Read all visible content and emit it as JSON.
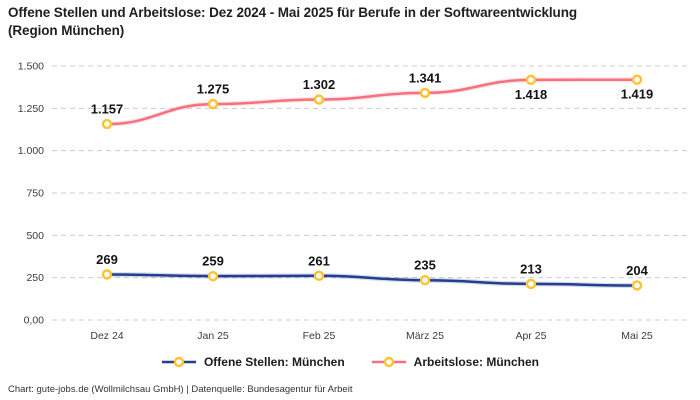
{
  "title": "Offene Stellen und Arbeitslose: Dez 2024 - Mai 2025 für Berufe in der Softwareentwicklung (Region München)",
  "footer": "Chart: gute-jobs.de (Wollmilchsau GmbH) | Datenquelle: Bundesagentur für Arbeit",
  "colors": {
    "background": "#ffffff",
    "open_positions_line": "#243e8f",
    "unemployed_line": "#f8707f",
    "marker_ring": "#fcc22f",
    "marker_fill": "#ffffff",
    "grid": "#cccccc",
    "title_text": "#1f1f1f",
    "axis_text": "#3c3c3c",
    "data_label_text": "#141414",
    "footer_text": "#333333"
  },
  "chart_data": {
    "type": "line",
    "title": "Offene Stellen und Arbeitslose: Dez 2024 - Mai 2025 für Berufe in der Softwareentwicklung (Region München)",
    "categories": [
      "Dez 24",
      "Jan 25",
      "Feb 25",
      "März 25",
      "Apr 25",
      "Mai 25"
    ],
    "series": [
      {
        "id": "offene-stellen-muenchen",
        "name": "Offene Stellen: München",
        "color": "#243e8f",
        "values": [
          269,
          259,
          261,
          235,
          213,
          204
        ],
        "labels": [
          "269",
          "259",
          "261",
          "235",
          "213",
          "204"
        ],
        "label_positions": [
          "above",
          "above",
          "above",
          "above",
          "above",
          "above"
        ]
      },
      {
        "id": "arbeitslose-muenchen",
        "name": "Arbeitslose: München",
        "color": "#f8707f",
        "values": [
          1157,
          1275,
          1302,
          1341,
          1418,
          1419
        ],
        "labels": [
          "1.157",
          "1.275",
          "1.302",
          "1.341",
          "1.418",
          "1.419"
        ],
        "label_positions": [
          "above",
          "above",
          "above",
          "above",
          "below",
          "below"
        ]
      }
    ],
    "y_ticks": [
      {
        "value": 0,
        "label": "0,00"
      },
      {
        "value": 250,
        "label": "250"
      },
      {
        "value": 500,
        "label": "500"
      },
      {
        "value": 750,
        "label": "750"
      },
      {
        "value": 1000,
        "label": "1.000"
      },
      {
        "value": 1250,
        "label": "1.250"
      },
      {
        "value": 1500,
        "label": "1.500"
      }
    ],
    "ylim": [
      0,
      1500
    ],
    "grid": "horizontal-dashed",
    "legend_position": "bottom",
    "marker_style": "circle-white-fill-gold-ring"
  }
}
